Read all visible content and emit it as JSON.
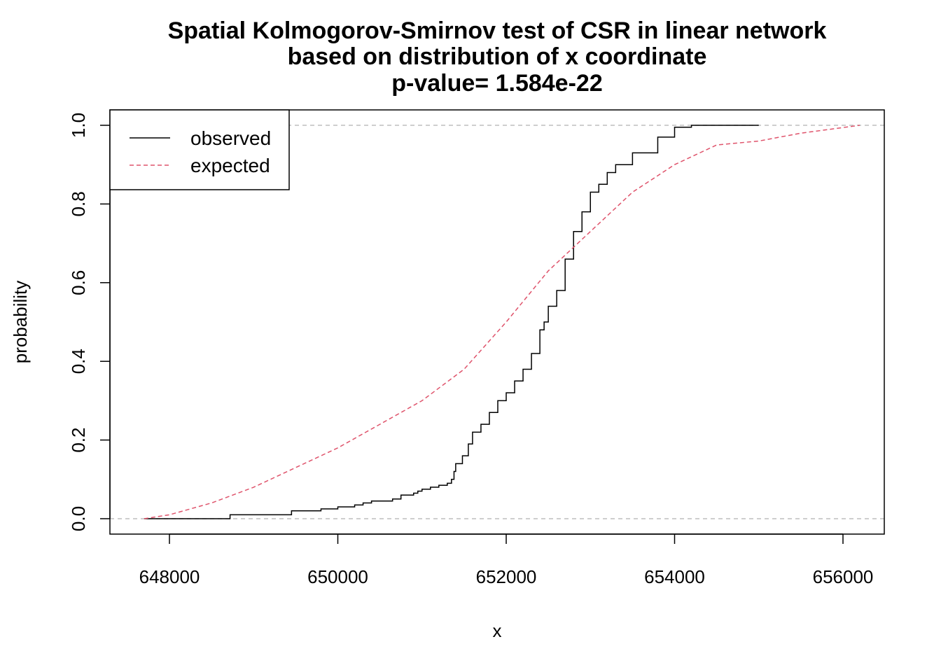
{
  "chart_data": {
    "type": "line",
    "title_lines": [
      "Spatial Kolmogorov-Smirnov test of CSR in linear network",
      "based on distribution of x coordinate",
      "p-value= 1.584e-22"
    ],
    "xlabel": "x",
    "ylabel": "probability",
    "xlim": [
      647700,
      656200
    ],
    "ylim": [
      0,
      1
    ],
    "x_ticks": [
      648000,
      650000,
      652000,
      654000,
      656000
    ],
    "x_tick_labels": [
      "648000",
      "650000",
      "652000",
      "654000",
      "656000"
    ],
    "y_ticks": [
      0,
      0.2,
      0.4,
      0.6,
      0.8,
      1.0
    ],
    "y_tick_labels": [
      "0.0",
      "0.2",
      "0.4",
      "0.6",
      "0.8",
      "1.0"
    ],
    "reference_lines": [
      0,
      1
    ],
    "legend": {
      "position": "top-left",
      "entries": [
        "observed",
        "expected"
      ]
    },
    "series": [
      {
        "name": "observed",
        "color": "#000000",
        "style": "step",
        "points": [
          [
            647700,
            0.0
          ],
          [
            648700,
            0.0
          ],
          [
            648720,
            0.01
          ],
          [
            649400,
            0.01
          ],
          [
            649450,
            0.02
          ],
          [
            649800,
            0.025
          ],
          [
            650000,
            0.03
          ],
          [
            650200,
            0.035
          ],
          [
            650300,
            0.04
          ],
          [
            650400,
            0.045
          ],
          [
            650650,
            0.05
          ],
          [
            650750,
            0.06
          ],
          [
            650900,
            0.065
          ],
          [
            650950,
            0.07
          ],
          [
            651000,
            0.075
          ],
          [
            651100,
            0.08
          ],
          [
            651200,
            0.085
          ],
          [
            651300,
            0.09
          ],
          [
            651350,
            0.1
          ],
          [
            651380,
            0.12
          ],
          [
            651400,
            0.14
          ],
          [
            651480,
            0.16
          ],
          [
            651550,
            0.19
          ],
          [
            651600,
            0.22
          ],
          [
            651700,
            0.24
          ],
          [
            651800,
            0.27
          ],
          [
            651900,
            0.3
          ],
          [
            652000,
            0.32
          ],
          [
            652100,
            0.35
          ],
          [
            652200,
            0.38
          ],
          [
            652300,
            0.42
          ],
          [
            652400,
            0.48
          ],
          [
            652450,
            0.5
          ],
          [
            652500,
            0.54
          ],
          [
            652600,
            0.58
          ],
          [
            652700,
            0.66
          ],
          [
            652800,
            0.73
          ],
          [
            652900,
            0.78
          ],
          [
            653000,
            0.83
          ],
          [
            653100,
            0.85
          ],
          [
            653200,
            0.88
          ],
          [
            653300,
            0.9
          ],
          [
            653500,
            0.93
          ],
          [
            653800,
            0.97
          ],
          [
            654000,
            0.995
          ],
          [
            654200,
            1.0
          ],
          [
            655000,
            1.0
          ]
        ]
      },
      {
        "name": "expected",
        "color": "#DF536B",
        "style": "dashed",
        "points": [
          [
            647700,
            0.0
          ],
          [
            648000,
            0.01
          ],
          [
            648500,
            0.04
          ],
          [
            649000,
            0.08
          ],
          [
            649500,
            0.13
          ],
          [
            650000,
            0.18
          ],
          [
            650500,
            0.24
          ],
          [
            651000,
            0.3
          ],
          [
            651500,
            0.38
          ],
          [
            652000,
            0.5
          ],
          [
            652500,
            0.63
          ],
          [
            653000,
            0.73
          ],
          [
            653500,
            0.83
          ],
          [
            654000,
            0.9
          ],
          [
            654500,
            0.95
          ],
          [
            655000,
            0.96
          ],
          [
            655500,
            0.98
          ],
          [
            656200,
            1.0
          ]
        ]
      }
    ]
  }
}
